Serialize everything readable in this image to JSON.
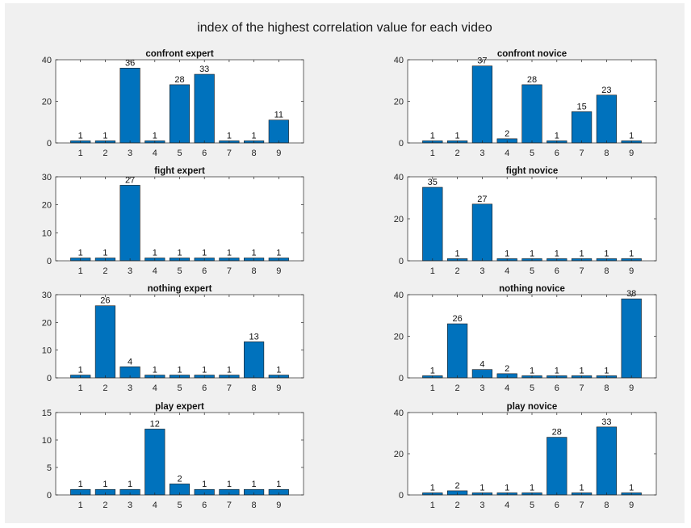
{
  "figure_title": "index of the highest correlation value for each video",
  "colors": {
    "bar": "#0072BD",
    "bar_edge": "#1a1a1a",
    "axis_bg": "#ffffff",
    "axis": "#262626",
    "figure_bg": "#f0f0f0"
  },
  "chart_data": [
    {
      "type": "bar",
      "title": "confront expert",
      "categories": [
        "1",
        "2",
        "3",
        "4",
        "5",
        "6",
        "7",
        "8",
        "9"
      ],
      "values": [
        1,
        1,
        36,
        1,
        28,
        33,
        1,
        1,
        11
      ],
      "ylim": [
        0,
        40
      ],
      "yticks": [
        0,
        20,
        40
      ],
      "grid": false
    },
    {
      "type": "bar",
      "title": "confront novice",
      "categories": [
        "1",
        "2",
        "3",
        "4",
        "5",
        "6",
        "7",
        "8",
        "9"
      ],
      "values": [
        1,
        1,
        37,
        2,
        28,
        1,
        15,
        23,
        1
      ],
      "ylim": [
        0,
        40
      ],
      "yticks": [
        0,
        20,
        40
      ],
      "grid": false
    },
    {
      "type": "bar",
      "title": "fight expert",
      "categories": [
        "1",
        "2",
        "3",
        "4",
        "5",
        "6",
        "7",
        "8",
        "9"
      ],
      "values": [
        1,
        1,
        27,
        1,
        1,
        1,
        1,
        1,
        1
      ],
      "ylim": [
        0,
        30
      ],
      "yticks": [
        0,
        10,
        20,
        30
      ],
      "grid": false
    },
    {
      "type": "bar",
      "title": "fight novice",
      "categories": [
        "1",
        "2",
        "3",
        "4",
        "5",
        "6",
        "7",
        "8",
        "9"
      ],
      "values": [
        35,
        1,
        27,
        1,
        1,
        1,
        1,
        1,
        1
      ],
      "ylim": [
        0,
        40
      ],
      "yticks": [
        0,
        20,
        40
      ],
      "grid": false
    },
    {
      "type": "bar",
      "title": "nothing expert",
      "categories": [
        "1",
        "2",
        "3",
        "4",
        "5",
        "6",
        "7",
        "8",
        "9"
      ],
      "values": [
        1,
        26,
        4,
        1,
        1,
        1,
        1,
        13,
        1
      ],
      "ylim": [
        0,
        30
      ],
      "yticks": [
        0,
        10,
        20,
        30
      ],
      "grid": false
    },
    {
      "type": "bar",
      "title": "nothing novice",
      "categories": [
        "1",
        "2",
        "3",
        "4",
        "5",
        "6",
        "7",
        "8",
        "9"
      ],
      "values": [
        1,
        26,
        4,
        2,
        1,
        1,
        1,
        1,
        38
      ],
      "ylim": [
        0,
        40
      ],
      "yticks": [
        0,
        20,
        40
      ],
      "grid": false
    },
    {
      "type": "bar",
      "title": "play expert",
      "categories": [
        "1",
        "2",
        "3",
        "4",
        "5",
        "6",
        "7",
        "8",
        "9"
      ],
      "values": [
        1,
        1,
        1,
        12,
        2,
        1,
        1,
        1,
        1
      ],
      "ylim": [
        0,
        15
      ],
      "yticks": [
        0,
        5,
        10,
        15
      ],
      "grid": false
    },
    {
      "type": "bar",
      "title": "play novice",
      "categories": [
        "1",
        "2",
        "3",
        "4",
        "5",
        "6",
        "7",
        "8",
        "9"
      ],
      "values": [
        1,
        2,
        1,
        1,
        1,
        28,
        1,
        33,
        1
      ],
      "ylim": [
        0,
        40
      ],
      "yticks": [
        0,
        20,
        40
      ],
      "grid": false
    }
  ]
}
